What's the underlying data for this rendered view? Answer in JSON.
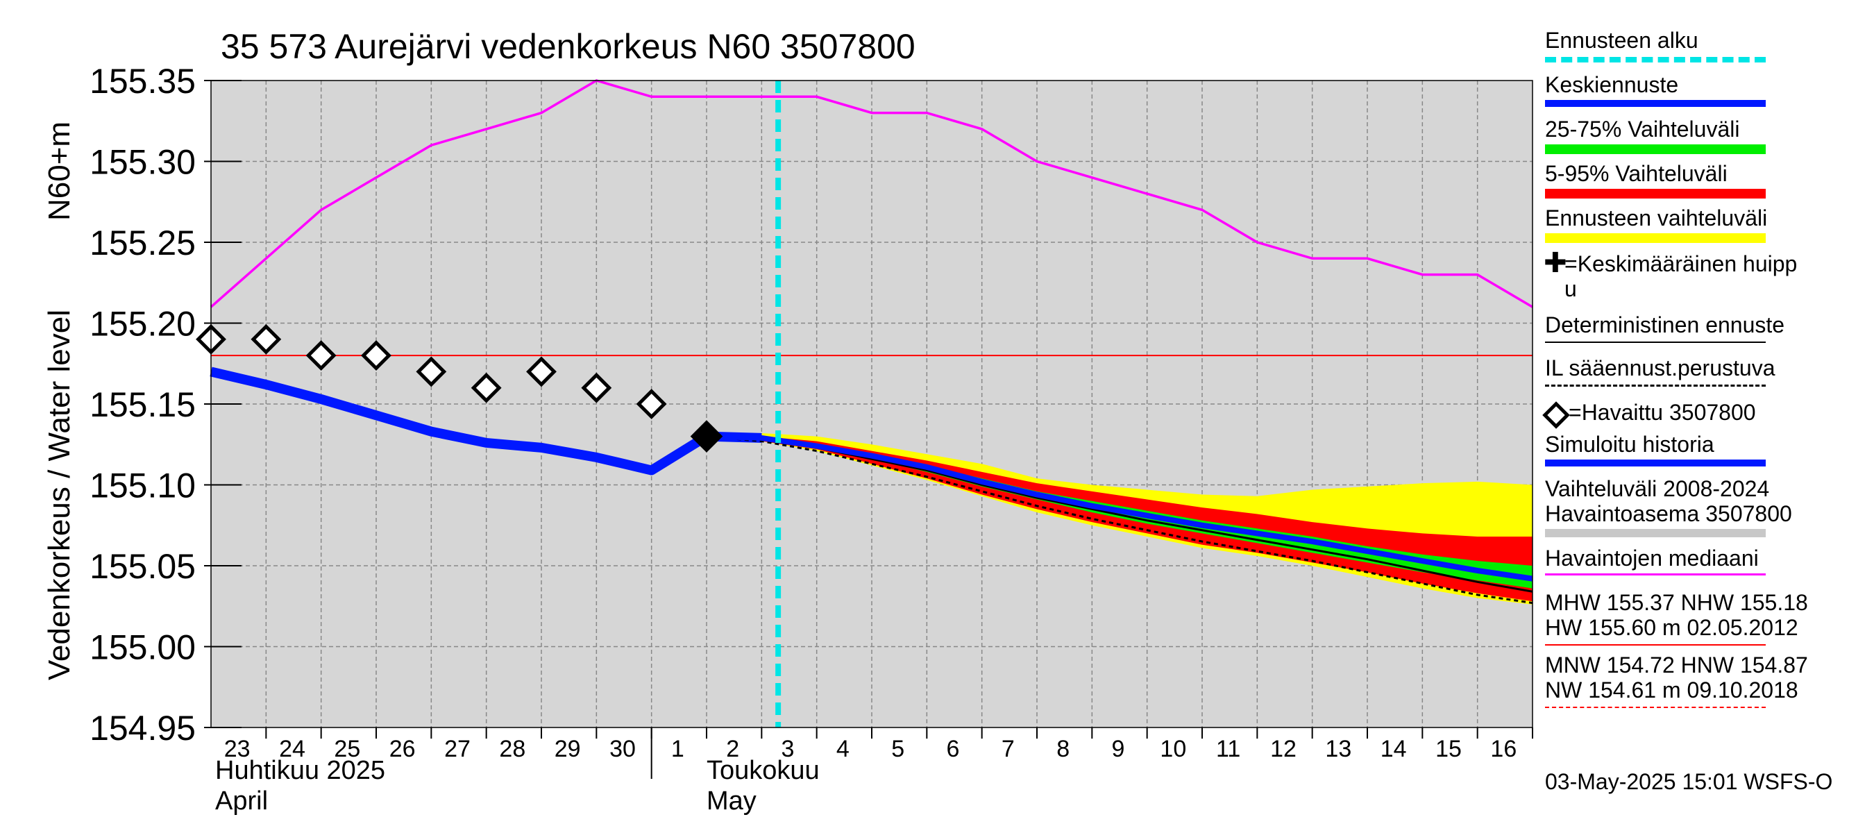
{
  "chart_data": {
    "type": "line",
    "title": "35 573 Aurejärvi vedenkorkeus N60 3507800",
    "ylabel_left": "Vedenkorkeus / Water level",
    "ylabel_unit": "N60+m",
    "ylim": [
      154.95,
      155.35
    ],
    "y_ticks": [
      "155.35",
      "155.30",
      "155.25",
      "155.20",
      "155.15",
      "155.10",
      "155.05",
      "155.00",
      "154.95"
    ],
    "x_range": [
      22.5,
      46.5
    ],
    "x_ticks": [
      {
        "x": 23,
        "label": "23"
      },
      {
        "x": 24,
        "label": "24"
      },
      {
        "x": 25,
        "label": "25"
      },
      {
        "x": 26,
        "label": "26"
      },
      {
        "x": 27,
        "label": "27"
      },
      {
        "x": 28,
        "label": "28"
      },
      {
        "x": 29,
        "label": "29"
      },
      {
        "x": 30,
        "label": "30"
      },
      {
        "x": 31,
        "label": "1"
      },
      {
        "x": 32,
        "label": "2"
      },
      {
        "x": 33,
        "label": "3"
      },
      {
        "x": 34,
        "label": "4"
      },
      {
        "x": 35,
        "label": "5"
      },
      {
        "x": 36,
        "label": "6"
      },
      {
        "x": 37,
        "label": "7"
      },
      {
        "x": 38,
        "label": "8"
      },
      {
        "x": 39,
        "label": "9"
      },
      {
        "x": 40,
        "label": "10"
      },
      {
        "x": 41,
        "label": "11"
      },
      {
        "x": 42,
        "label": "12"
      },
      {
        "x": 43,
        "label": "13"
      },
      {
        "x": 44,
        "label": "14"
      },
      {
        "x": 45,
        "label": "15"
      },
      {
        "x": 46,
        "label": "16"
      }
    ],
    "month_labels": {
      "april_fi": "Huhtikuu  2025",
      "april_en": "April",
      "may_fi": "Toukokuu",
      "may_en": "May"
    },
    "month_boundary_x": 30.5,
    "forecast_start_x": 32.8,
    "reference_line_y": 155.18,
    "median": {
      "x": [
        22.5,
        23.5,
        24.5,
        25.5,
        26.5,
        27.5,
        28.5,
        29.5,
        30.5,
        31.5,
        32.5,
        33.5,
        34.5,
        35.5,
        36.5,
        37.5,
        38.5,
        39.5,
        40.5,
        41.5,
        42.5,
        43.5,
        44.5,
        45.5,
        46.5
      ],
      "y": [
        155.21,
        155.24,
        155.27,
        155.29,
        155.31,
        155.32,
        155.33,
        155.35,
        155.34,
        155.34,
        155.34,
        155.34,
        155.33,
        155.33,
        155.32,
        155.3,
        155.29,
        155.28,
        155.27,
        155.25,
        155.24,
        155.24,
        155.23,
        155.23,
        155.21
      ]
    },
    "observed": {
      "x": [
        22.5,
        23.5,
        24.5,
        25.5,
        26.5,
        27.5,
        28.5,
        29.5,
        30.5,
        31.5
      ],
      "y": [
        155.19,
        155.19,
        155.18,
        155.18,
        155.17,
        155.16,
        155.17,
        155.16,
        155.15,
        155.13
      ]
    },
    "simulated": {
      "x": [
        22.5,
        23.5,
        24.5,
        25.5,
        26.5,
        27.5,
        28.5,
        29.5,
        30.5,
        31.5,
        32.5
      ],
      "y": [
        155.17,
        155.162,
        155.153,
        155.143,
        155.133,
        155.126,
        155.123,
        155.117,
        155.109,
        155.13,
        155.129
      ]
    },
    "forecast_x": [
      31.5,
      32.5,
      33.5,
      34.5,
      35.5,
      36.5,
      37.5,
      38.5,
      39.5,
      40.5,
      41.5,
      42.5,
      43.5,
      44.5,
      45.5,
      46.5
    ],
    "forecast_range_upper": [
      155.13,
      155.132,
      155.13,
      155.125,
      155.119,
      155.113,
      155.104,
      155.1,
      155.097,
      155.094,
      155.093,
      155.097,
      155.099,
      155.101,
      155.102,
      155.1
    ],
    "forecast_range_lower": [
      155.13,
      155.127,
      155.121,
      155.112,
      155.103,
      155.093,
      155.083,
      155.075,
      155.068,
      155.061,
      155.056,
      155.05,
      155.043,
      155.036,
      155.03,
      155.026
    ],
    "p5_95_upper": [
      155.13,
      155.13,
      155.127,
      155.121,
      155.115,
      155.108,
      155.101,
      155.096,
      155.091,
      155.086,
      155.082,
      155.077,
      155.073,
      155.07,
      155.068,
      155.068
    ],
    "p5_95_lower": [
      155.13,
      155.127,
      155.122,
      155.113,
      155.104,
      155.094,
      155.085,
      155.077,
      155.07,
      155.063,
      155.058,
      155.052,
      155.046,
      155.039,
      155.033,
      155.028
    ],
    "p25_75_upper": [
      155.13,
      155.129,
      155.125,
      155.119,
      155.112,
      155.104,
      155.096,
      155.09,
      155.084,
      155.078,
      155.073,
      155.068,
      155.062,
      155.057,
      155.053,
      155.05
    ],
    "p25_75_lower": [
      155.13,
      155.128,
      155.123,
      155.116,
      155.108,
      155.099,
      155.091,
      155.083,
      155.076,
      155.07,
      155.064,
      155.058,
      155.052,
      155.046,
      155.041,
      155.036
    ],
    "mean_forecast": [
      155.13,
      155.129,
      155.124,
      155.118,
      155.111,
      155.102,
      155.094,
      155.087,
      155.081,
      155.075,
      155.07,
      155.065,
      155.059,
      155.053,
      155.047,
      155.042
    ],
    "deterministic": [
      155.13,
      155.128,
      155.123,
      155.116,
      155.109,
      155.1,
      155.092,
      155.085,
      155.078,
      155.072,
      155.066,
      155.06,
      155.054,
      155.047,
      155.04,
      155.034
    ],
    "weather_based": [
      155.13,
      155.127,
      155.121,
      155.113,
      155.105,
      155.096,
      155.087,
      155.079,
      155.072,
      155.065,
      155.059,
      155.053,
      155.046,
      155.039,
      155.032,
      155.027
    ]
  },
  "legend": {
    "items": [
      {
        "id": "forecast-start",
        "label": "Ennusteen alku"
      },
      {
        "id": "mean-forecast",
        "label": "Keskiennuste"
      },
      {
        "id": "range-25-75",
        "label": "25-75% Vaihteluväli"
      },
      {
        "id": "range-5-95",
        "label": "5-95% Vaihteluväli"
      },
      {
        "id": "forecast-range",
        "label": "Ennusteen vaihteluväli"
      },
      {
        "id": "mean-peak",
        "label": "=Keskimääräinen huipp\nu"
      },
      {
        "id": "deterministic",
        "label": "Deterministinen ennuste"
      },
      {
        "id": "weather-based",
        "label": "IL sääennust.perustuva"
      },
      {
        "id": "observed",
        "label": "=Havaittu 3507800"
      },
      {
        "id": "simulated",
        "label": "Simuloitu historia"
      },
      {
        "id": "hist-range",
        "label": "Vaihteluväli 2008-2024\n Havaintoasema 3507800"
      },
      {
        "id": "obs-median",
        "label": "Havaintojen mediaani"
      },
      {
        "id": "high-stats",
        "label": "MHW 155.37 NHW 155.18\nHW 155.60 m 02.05.2012"
      },
      {
        "id": "low-stats",
        "label": "MNW 154.72 HNW 154.87\nNW 154.61 m 09.10.2018"
      }
    ],
    "colors": {
      "forecast_start": "#00e5e5",
      "mean_forecast": "#0018ff",
      "range_25_75": "#00ee00",
      "range_5_95": "#ff0000",
      "forecast_range": "#ffff00",
      "simulated": "#0018ff",
      "median": "#ff00ff",
      "hist_range": "#c8c8c8",
      "plot_bg": "#d6d6d6"
    }
  },
  "footer": "03-May-2025 15:01 WSFS-O"
}
